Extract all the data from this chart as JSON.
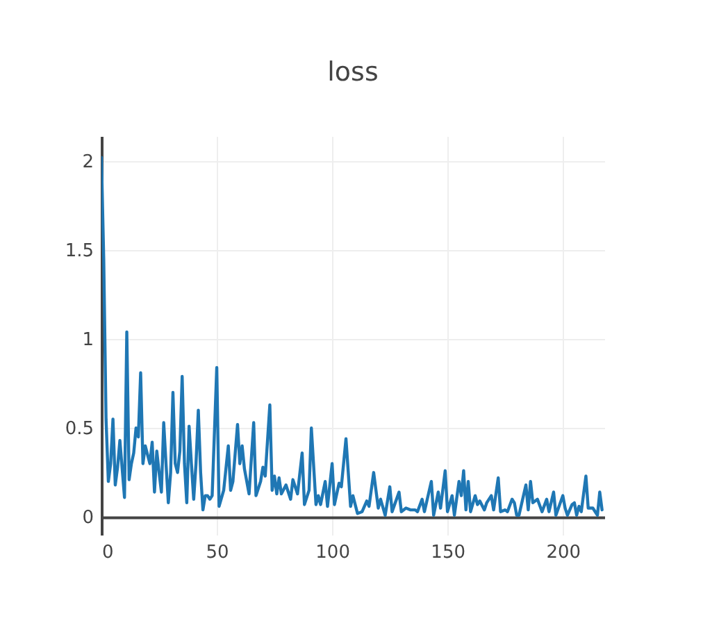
{
  "chart_data": {
    "type": "line",
    "title": "loss",
    "x": [
      0,
      1,
      2,
      3,
      4,
      5,
      6,
      7,
      8,
      9,
      10,
      11,
      12,
      13,
      14,
      15,
      16,
      17,
      18,
      19,
      20,
      21,
      22,
      23,
      24,
      25,
      26,
      27,
      28,
      29,
      30,
      31,
      32,
      33,
      34,
      35,
      36,
      37,
      38,
      39,
      40,
      41,
      42,
      43,
      44,
      45,
      46,
      47,
      48,
      50,
      51,
      53,
      55,
      56,
      57,
      59,
      60,
      61,
      62,
      64,
      66,
      67,
      69,
      70,
      71,
      73,
      74,
      75,
      76,
      77,
      78,
      80,
      82,
      83,
      85,
      87,
      88,
      90,
      91,
      93,
      94,
      95,
      97,
      98,
      100,
      101,
      103,
      104,
      106,
      108,
      109,
      111,
      113,
      115,
      116,
      118,
      120,
      121,
      123,
      125,
      126,
      129,
      130,
      132,
      134,
      136,
      137,
      139,
      140,
      143,
      144,
      146,
      147,
      149,
      150,
      152,
      153,
      155,
      156,
      157,
      158,
      159,
      160,
      162,
      163,
      164,
      166,
      167,
      169,
      170,
      172,
      173,
      175,
      176,
      178,
      179,
      180,
      181,
      184,
      185,
      186,
      187,
      189,
      191,
      193,
      194,
      196,
      197,
      200,
      201,
      202,
      204,
      205,
      206,
      207,
      208,
      210,
      211,
      213,
      215,
      216,
      217
    ],
    "series": [
      {
        "color": "#1f77b4",
        "values": [
          2.02,
          1.45,
          0.55,
          0.2,
          0.3,
          0.55,
          0.18,
          0.28,
          0.43,
          0.27,
          0.11,
          1.04,
          0.21,
          0.3,
          0.36,
          0.5,
          0.45,
          0.81,
          0.3,
          0.4,
          0.35,
          0.3,
          0.42,
          0.14,
          0.37,
          0.25,
          0.14,
          0.53,
          0.3,
          0.08,
          0.25,
          0.7,
          0.3,
          0.25,
          0.37,
          0.79,
          0.3,
          0.08,
          0.51,
          0.3,
          0.1,
          0.3,
          0.6,
          0.25,
          0.04,
          0.12,
          0.12,
          0.1,
          0.12,
          0.84,
          0.06,
          0.15,
          0.4,
          0.15,
          0.2,
          0.52,
          0.3,
          0.4,
          0.27,
          0.13,
          0.53,
          0.12,
          0.2,
          0.28,
          0.23,
          0.63,
          0.15,
          0.23,
          0.13,
          0.22,
          0.13,
          0.18,
          0.1,
          0.21,
          0.13,
          0.36,
          0.07,
          0.15,
          0.5,
          0.07,
          0.12,
          0.07,
          0.2,
          0.06,
          0.3,
          0.07,
          0.19,
          0.17,
          0.44,
          0.06,
          0.12,
          0.02,
          0.03,
          0.09,
          0.06,
          0.25,
          0.05,
          0.1,
          0.01,
          0.17,
          0.03,
          0.14,
          0.03,
          0.05,
          0.04,
          0.04,
          0.03,
          0.1,
          0.03,
          0.2,
          0.01,
          0.14,
          0.05,
          0.26,
          0.03,
          0.12,
          0.01,
          0.2,
          0.12,
          0.26,
          0.04,
          0.2,
          0.03,
          0.12,
          0.07,
          0.09,
          0.04,
          0.08,
          0.12,
          0.04,
          0.22,
          0.03,
          0.04,
          0.03,
          0.1,
          0.08,
          0.01,
          0.01,
          0.18,
          0.04,
          0.2,
          0.08,
          0.1,
          0.03,
          0.1,
          0.03,
          0.14,
          0.01,
          0.12,
          0.05,
          0.01,
          0.07,
          0.08,
          0.01,
          0.06,
          0.03,
          0.23,
          0.05,
          0.05,
          0.01,
          0.14,
          0.04
        ]
      }
    ],
    "xlim": [
      0,
      218
    ],
    "ylim": [
      -0.1,
      2.14
    ],
    "xticks": [
      0,
      50,
      100,
      150,
      200
    ],
    "yticks": [
      0,
      0.5,
      1,
      1.5,
      2
    ],
    "grid": true,
    "line_style": "solid",
    "marker": "none"
  }
}
